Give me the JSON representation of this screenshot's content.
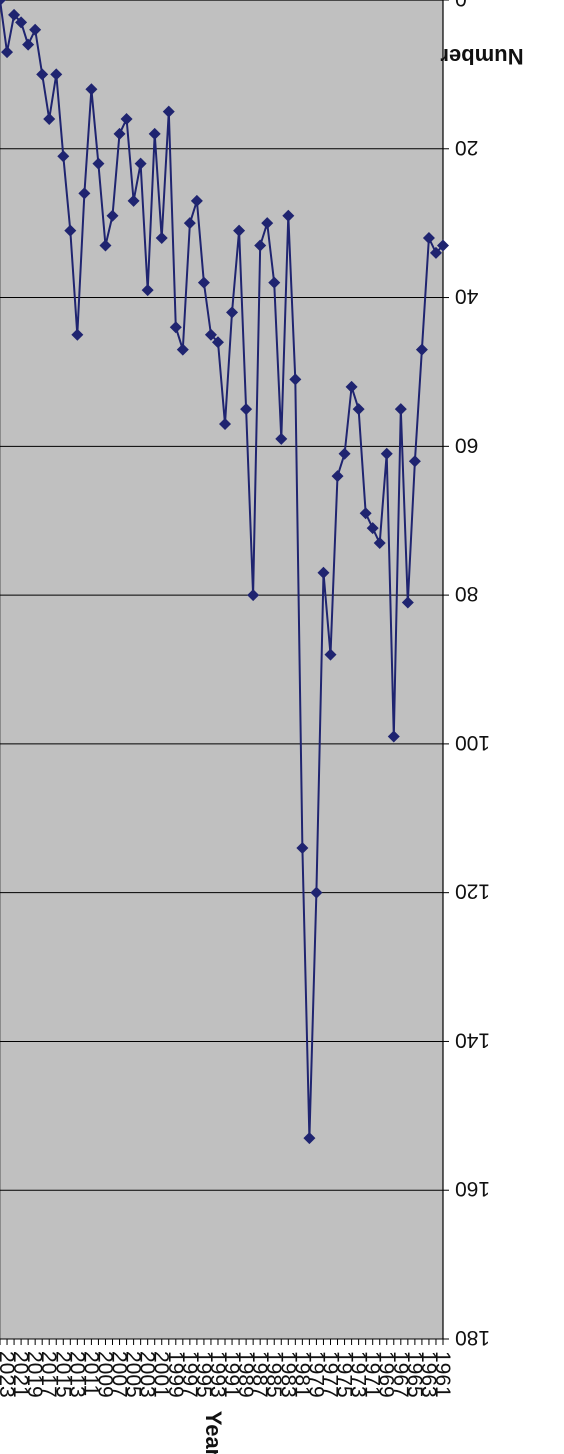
{
  "chart_data": {
    "type": "line",
    "orientation": "rotated 180 degrees",
    "xlabel": "Year",
    "ylabel": "Number",
    "xlim": [
      1961,
      2024
    ],
    "ylim": [
      0,
      180
    ],
    "y_ticks": [
      0,
      20,
      40,
      60,
      80,
      100,
      120,
      140,
      160,
      180
    ],
    "x_tick_labels": [
      "1961",
      "1963",
      "1965",
      "1967",
      "1969",
      "1971",
      "1973",
      "1975",
      "1977",
      "1979",
      "1981",
      "1983",
      "1985",
      "1987",
      "1989",
      "1991",
      "1993",
      "1995",
      "1997",
      "1999",
      "2001",
      "2003",
      "2005",
      "2007",
      "2009",
      "2011",
      "2013",
      "2015",
      "2017",
      "2019",
      "2021",
      "2023"
    ],
    "grid": true,
    "background_color": "#c0c0c0",
    "line_color": "#1f2470",
    "series": [
      {
        "marker": "diamond",
        "x": [
          1961,
          1962,
          1963,
          1964,
          1965,
          1966,
          1967,
          1968,
          1969,
          1970,
          1971,
          1972,
          1973,
          1974,
          1975,
          1976,
          1977,
          1978,
          1979,
          1980,
          1981,
          1982,
          1983,
          1984,
          1985,
          1986,
          1987,
          1988,
          1989,
          1990,
          1991,
          1992,
          1993,
          1994,
          1995,
          1996,
          1997,
          1998,
          1999,
          2000,
          2001,
          2002,
          2003,
          2004,
          2005,
          2006,
          2007,
          2008,
          2009,
          2010,
          2011,
          2012,
          2013,
          2014,
          2015,
          2016,
          2017,
          2018,
          2019,
          2020,
          2021,
          2022,
          2023,
          2024
        ],
        "values": [
          33,
          34,
          32,
          47,
          62,
          81,
          55,
          99,
          61,
          73,
          71,
          69,
          55,
          52,
          61,
          64,
          88,
          77,
          120,
          153,
          114,
          51,
          29,
          59,
          38,
          30,
          33,
          80,
          55,
          31,
          42,
          57,
          46,
          45,
          38,
          27,
          30,
          47,
          44,
          15,
          32,
          18,
          39,
          22,
          27,
          16,
          18,
          29,
          33,
          22,
          12,
          26,
          45,
          31,
          21,
          10,
          16,
          10,
          4,
          6,
          3,
          2,
          7,
          0
        ]
      }
    ]
  }
}
